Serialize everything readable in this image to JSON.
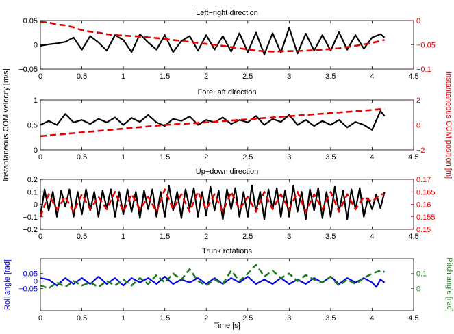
{
  "figure": {
    "left_ylabel": "Instantaneous COM velocity [m/s]",
    "right_ylabel": "Instantaneous COM position [m]"
  },
  "colors": {
    "velocity": "#000000",
    "position": "#e60000",
    "roll": "#0000e6",
    "pitch": "#1f7a1f"
  },
  "chart_data": [
    {
      "type": "line",
      "title": "Left−right direction",
      "xlim": [
        0,
        4.5
      ],
      "xticks": [
        "0",
        "0.5",
        "1",
        "1.5",
        "2",
        "2.5",
        "3",
        "3.5",
        "4",
        "4.5"
      ],
      "left_ylim": [
        -0.05,
        0.05
      ],
      "left_yticks": [
        "−0.05",
        "0",
        "0.05"
      ],
      "right_ylim": [
        -0.1,
        0
      ],
      "right_yticks": [
        "−0.1",
        "−0.05",
        "0"
      ],
      "series": [
        {
          "axis": "left",
          "style": "solid",
          "x": [
            0,
            0.1,
            0.2,
            0.3,
            0.4,
            0.5,
            0.6,
            0.7,
            0.8,
            0.9,
            1.0,
            1.1,
            1.2,
            1.3,
            1.4,
            1.5,
            1.6,
            1.7,
            1.8,
            1.9,
            2.0,
            2.1,
            2.2,
            2.3,
            2.4,
            2.5,
            2.6,
            2.7,
            2.8,
            2.9,
            3.0,
            3.1,
            3.2,
            3.3,
            3.4,
            3.5,
            3.6,
            3.7,
            3.8,
            3.9,
            4.0,
            4.1,
            4.15
          ],
          "values": [
            -0.002,
            0.001,
            0.003,
            0.006,
            0.015,
            -0.01,
            0.018,
            0.005,
            -0.012,
            0.02,
            0.01,
            -0.015,
            0.022,
            0.005,
            -0.01,
            0.02,
            -0.015,
            0.008,
            0.018,
            -0.012,
            0.02,
            -0.01,
            0.018,
            -0.014,
            0.024,
            -0.015,
            0.025,
            -0.02,
            0.024,
            -0.016,
            0.035,
            -0.018,
            0.023,
            -0.012,
            0.02,
            -0.012,
            0.026,
            -0.01,
            0.02,
            -0.008,
            0.015,
            0.022,
            0.015
          ]
        },
        {
          "axis": "right",
          "style": "dashed",
          "x": [
            0,
            0.1,
            0.2,
            0.3,
            0.4,
            0.5,
            0.6,
            0.7,
            0.8,
            0.9,
            1.0,
            1.2,
            1.4,
            1.6,
            1.8,
            2.0,
            2.2,
            2.4,
            2.6,
            2.8,
            3.0,
            3.2,
            3.4,
            3.6,
            3.8,
            4.0,
            4.15
          ],
          "values": [
            -0.003,
            -0.004,
            -0.008,
            -0.01,
            -0.014,
            -0.02,
            -0.023,
            -0.025,
            -0.028,
            -0.03,
            -0.031,
            -0.033,
            -0.036,
            -0.04,
            -0.044,
            -0.048,
            -0.052,
            -0.057,
            -0.062,
            -0.064,
            -0.063,
            -0.062,
            -0.06,
            -0.057,
            -0.052,
            -0.046,
            -0.04
          ]
        }
      ]
    },
    {
      "type": "line",
      "title": "Fore−aft direction",
      "xlim": [
        0,
        4.5
      ],
      "xticks": [
        "0",
        "0.5",
        "1",
        "1.5",
        "2",
        "2.5",
        "3",
        "3.5",
        "4",
        "4.5"
      ],
      "left_ylim": [
        0,
        1
      ],
      "left_yticks": [
        "0",
        "0.5",
        "1"
      ],
      "right_ylim": [
        -2,
        2
      ],
      "right_yticks": [
        "−2",
        "0",
        "2"
      ],
      "series": [
        {
          "axis": "left",
          "style": "solid",
          "x": [
            0,
            0.1,
            0.2,
            0.3,
            0.4,
            0.5,
            0.6,
            0.7,
            0.8,
            0.9,
            1.0,
            1.1,
            1.2,
            1.3,
            1.4,
            1.5,
            1.6,
            1.7,
            1.8,
            1.9,
            2.0,
            2.1,
            2.2,
            2.3,
            2.4,
            2.5,
            2.6,
            2.7,
            2.8,
            2.9,
            3.0,
            3.1,
            3.2,
            3.3,
            3.4,
            3.5,
            3.6,
            3.7,
            3.8,
            3.9,
            4.0,
            4.1,
            4.15
          ],
          "values": [
            0.5,
            0.58,
            0.5,
            0.72,
            0.55,
            0.6,
            0.52,
            0.62,
            0.55,
            0.65,
            0.5,
            0.64,
            0.56,
            0.7,
            0.55,
            0.48,
            0.62,
            0.58,
            0.67,
            0.5,
            0.6,
            0.55,
            0.65,
            0.52,
            0.6,
            0.55,
            0.68,
            0.5,
            0.62,
            0.56,
            0.7,
            0.5,
            0.6,
            0.48,
            0.58,
            0.5,
            0.6,
            0.45,
            0.56,
            0.5,
            0.4,
            0.78,
            0.68
          ]
        },
        {
          "axis": "right",
          "style": "dashed",
          "x": [
            0,
            0.5,
            1.0,
            1.5,
            2.0,
            2.5,
            3.0,
            3.5,
            4.0,
            4.15
          ],
          "values": [
            -0.9,
            -0.6,
            -0.3,
            0.0,
            0.2,
            0.45,
            0.7,
            0.95,
            1.2,
            1.3
          ]
        }
      ]
    },
    {
      "type": "line",
      "title": "Up−down direction",
      "xlim": [
        0,
        4.5
      ],
      "xticks": [
        "0",
        "0.5",
        "1",
        "1.5",
        "2",
        "2.5",
        "3",
        "3.5",
        "4",
        "4.5"
      ],
      "left_ylim": [
        -0.2,
        0.2
      ],
      "left_yticks": [
        "−0.2",
        "−0.1",
        "0",
        "0.1",
        "0.2"
      ],
      "right_ylim": [
        0.15,
        0.17
      ],
      "right_yticks": [
        "0.15",
        "0.155",
        "0.16",
        "0.165",
        "0.17"
      ],
      "series": [
        {
          "axis": "left",
          "style": "solid",
          "x": [
            0,
            0.05,
            0.1,
            0.15,
            0.2,
            0.25,
            0.3,
            0.35,
            0.4,
            0.45,
            0.5,
            0.55,
            0.6,
            0.65,
            0.7,
            0.75,
            0.8,
            0.85,
            0.9,
            0.95,
            1.0,
            1.05,
            1.1,
            1.15,
            1.2,
            1.25,
            1.3,
            1.35,
            1.4,
            1.45,
            1.5,
            1.55,
            1.6,
            1.65,
            1.7,
            1.75,
            1.8,
            1.85,
            1.9,
            1.95,
            2.0,
            2.05,
            2.1,
            2.15,
            2.2,
            2.25,
            2.3,
            2.35,
            2.4,
            2.45,
            2.5,
            2.55,
            2.6,
            2.65,
            2.7,
            2.75,
            2.8,
            2.85,
            2.9,
            2.95,
            3.0,
            3.05,
            3.1,
            3.15,
            3.2,
            3.25,
            3.3,
            3.35,
            3.4,
            3.45,
            3.5,
            3.55,
            3.6,
            3.65,
            3.7,
            3.75,
            3.8,
            3.85,
            3.9,
            3.95,
            4.0,
            4.05,
            4.1,
            4.15
          ],
          "values": [
            -0.1,
            0.12,
            -0.05,
            0.1,
            -0.1,
            0.11,
            -0.02,
            0.12,
            -0.1,
            0.1,
            -0.08,
            0.12,
            -0.05,
            0.1,
            -0.1,
            0.11,
            -0.03,
            0.12,
            -0.1,
            0.1,
            -0.08,
            0.12,
            -0.06,
            0.1,
            -0.11,
            0.11,
            -0.04,
            0.12,
            -0.1,
            0.1,
            -0.1,
            0.15,
            -0.05,
            0.1,
            -0.11,
            0.12,
            -0.03,
            0.13,
            -0.1,
            0.1,
            -0.09,
            0.14,
            -0.05,
            0.11,
            -0.12,
            0.12,
            -0.04,
            0.13,
            -0.1,
            0.1,
            -0.1,
            0.15,
            -0.06,
            0.1,
            -0.12,
            0.12,
            -0.04,
            0.13,
            -0.1,
            0.11,
            -0.1,
            0.15,
            -0.06,
            0.1,
            -0.12,
            0.12,
            -0.05,
            0.13,
            -0.11,
            0.1,
            -0.1,
            0.14,
            -0.06,
            0.11,
            -0.12,
            0.12,
            -0.04,
            0.13,
            -0.1,
            0.05,
            -0.04,
            0.08,
            -0.03,
            0.1
          ]
        },
        {
          "axis": "right",
          "style": "dashed",
          "x": [
            0,
            0.1,
            0.2,
            0.3,
            0.4,
            0.5,
            0.6,
            0.7,
            0.8,
            0.9,
            1.0,
            1.1,
            1.2,
            1.3,
            1.4,
            1.5,
            1.6,
            1.7,
            1.8,
            1.9,
            2.0,
            2.1,
            2.2,
            2.3,
            2.4,
            2.5,
            2.6,
            2.7,
            2.8,
            2.9,
            3.0,
            3.1,
            3.2,
            3.3,
            3.4,
            3.5,
            3.6,
            3.7,
            3.8,
            3.9,
            4.0,
            4.1,
            4.15
          ],
          "values": [
            0.155,
            0.164,
            0.158,
            0.163,
            0.157,
            0.164,
            0.158,
            0.163,
            0.158,
            0.165,
            0.157,
            0.164,
            0.158,
            0.163,
            0.157,
            0.166,
            0.158,
            0.164,
            0.157,
            0.165,
            0.158,
            0.164,
            0.157,
            0.165,
            0.158,
            0.163,
            0.157,
            0.165,
            0.158,
            0.164,
            0.158,
            0.165,
            0.157,
            0.164,
            0.158,
            0.165,
            0.157,
            0.164,
            0.158,
            0.163,
            0.161,
            0.164,
            0.164
          ]
        }
      ]
    },
    {
      "type": "line",
      "title": "Trunk rotations",
      "xlabel": "Time [s]",
      "xlim": [
        0,
        4.5
      ],
      "xticks": [
        "0",
        "0.5",
        "1",
        "1.5",
        "2",
        "2.5",
        "3",
        "3.5",
        "4",
        "4.5"
      ],
      "left_ylabel": "Roll angle [rad]",
      "left_ylim": [
        -0.2,
        0.15
      ],
      "left_yticks": [
        "−0.05",
        "0",
        "0.05"
      ],
      "right_ylabel": "Pitch angle [rad]",
      "right_ylim": [
        -0.15,
        0.2
      ],
      "right_yticks": [
        "0",
        "0.1"
      ],
      "series": [
        {
          "axis": "left",
          "style": "solid",
          "x": [
            0,
            0.1,
            0.2,
            0.3,
            0.4,
            0.5,
            0.6,
            0.7,
            0.8,
            0.9,
            1.0,
            1.1,
            1.2,
            1.3,
            1.4,
            1.5,
            1.6,
            1.7,
            1.8,
            1.9,
            2.0,
            2.1,
            2.2,
            2.3,
            2.4,
            2.5,
            2.6,
            2.7,
            2.8,
            2.9,
            3.0,
            3.1,
            3.2,
            3.3,
            3.4,
            3.5,
            3.6,
            3.7,
            3.8,
            3.9,
            4.0,
            4.05,
            4.1,
            4.15
          ],
          "values": [
            0.02,
            0.01,
            -0.03,
            0.02,
            -0.02,
            0.02,
            -0.02,
            0.03,
            -0.02,
            0.02,
            -0.03,
            0.02,
            -0.01,
            0.02,
            -0.02,
            0.03,
            -0.02,
            0.01,
            -0.01,
            0.02,
            -0.02,
            0.02,
            -0.02,
            0.02,
            -0.01,
            0.03,
            -0.02,
            0.01,
            -0.02,
            0.02,
            -0.02,
            0.01,
            -0.02,
            0.02,
            -0.01,
            0.03,
            -0.02,
            0.02,
            -0.01,
            0.02,
            -0.01,
            -0.04,
            0.01,
            -0.01
          ]
        },
        {
          "axis": "right",
          "style": "dashed",
          "x": [
            0,
            0.1,
            0.2,
            0.3,
            0.4,
            0.5,
            0.6,
            0.7,
            0.8,
            0.9,
            1.0,
            1.1,
            1.2,
            1.3,
            1.4,
            1.5,
            1.6,
            1.7,
            1.8,
            1.9,
            2.0,
            2.1,
            2.2,
            2.3,
            2.4,
            2.5,
            2.6,
            2.7,
            2.8,
            2.9,
            3.0,
            3.1,
            3.2,
            3.3,
            3.4,
            3.5,
            3.6,
            3.7,
            3.8,
            3.9,
            4.0,
            4.1,
            4.15
          ],
          "values": [
            0.02,
            0.0,
            0.04,
            0.01,
            0.05,
            0.02,
            0.04,
            0.01,
            0.05,
            0.02,
            0.06,
            0.02,
            0.07,
            0.03,
            0.09,
            0.04,
            0.1,
            0.06,
            0.13,
            0.05,
            0.02,
            0.06,
            0.03,
            0.12,
            0.05,
            0.1,
            0.16,
            0.08,
            0.12,
            0.07,
            0.1,
            0.05,
            0.09,
            0.06,
            0.04,
            0.08,
            0.02,
            0.06,
            0.03,
            0.07,
            0.1,
            0.12,
            0.11
          ]
        }
      ]
    }
  ]
}
